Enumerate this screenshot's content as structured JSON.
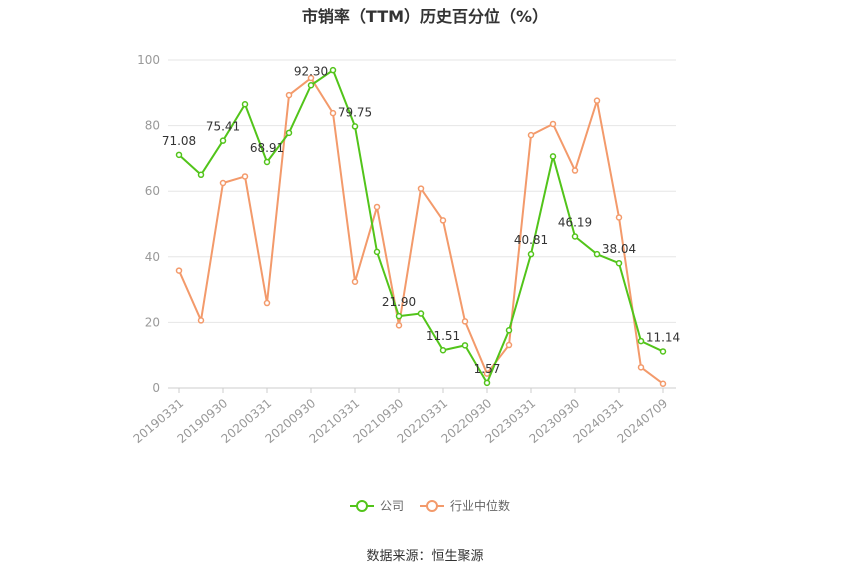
{
  "chart_data": {
    "type": "line",
    "title": "市销率（TTM）历史百分位（%）",
    "x": [
      "20190331",
      "20190630",
      "20190930",
      "20191231",
      "20200331",
      "20200630",
      "20200930",
      "20201231",
      "20210331",
      "20210630",
      "20210930",
      "20211231",
      "20220331",
      "20220630",
      "20220930",
      "20221231",
      "20230331",
      "20230630",
      "20230930",
      "20231231",
      "20240331",
      "20240630",
      "20240709"
    ],
    "x_tick_labels": [
      "20190331",
      "20190930",
      "20200331",
      "20200930",
      "20210331",
      "20210930",
      "20220331",
      "20220930",
      "20230331",
      "20230930",
      "20240331",
      "20240709"
    ],
    "ylim": [
      0,
      100
    ],
    "y_ticks": [
      0,
      20,
      40,
      60,
      80,
      100
    ],
    "grid": true,
    "legend_position": "bottom",
    "series": [
      {
        "name": "公司",
        "color": "#52c41a",
        "values": [
          71.08,
          65.0,
          75.41,
          86.5,
          68.91,
          77.8,
          92.3,
          96.9,
          79.75,
          41.5,
          21.9,
          22.7,
          11.51,
          13.0,
          1.57,
          17.6,
          40.81,
          70.6,
          46.19,
          40.8,
          38.04,
          14.3,
          11.14
        ],
        "labels": [
          "71.08",
          "",
          "75.41",
          "",
          "68.91",
          "",
          "92.30",
          "",
          "79.75",
          "",
          "21.90",
          "",
          "11.51",
          "",
          "1.57",
          "",
          "40.81",
          "",
          "46.19",
          "",
          "38.04",
          "",
          "11.14"
        ]
      },
      {
        "name": "行业中位数",
        "color": "#f39a6b",
        "values": [
          35.8,
          20.6,
          62.5,
          64.5,
          25.9,
          89.3,
          94.5,
          83.8,
          32.4,
          55.2,
          19.1,
          60.8,
          51.1,
          20.3,
          4.4,
          13.1,
          77.1,
          80.5,
          66.3,
          87.6,
          52.0,
          6.3,
          1.3
        ]
      }
    ],
    "source": "数据来源：恒生聚源"
  }
}
